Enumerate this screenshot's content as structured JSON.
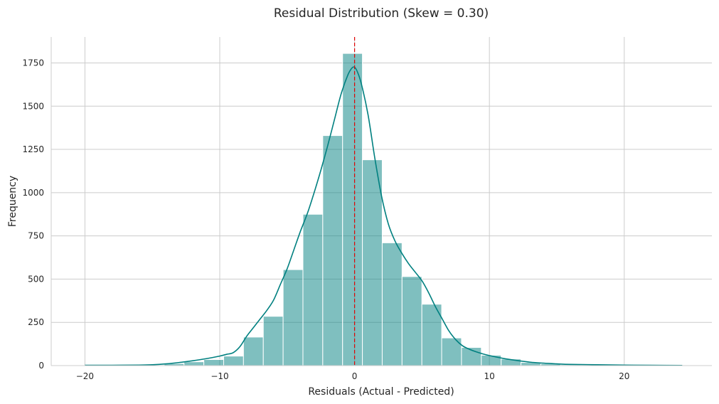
{
  "chart_data": {
    "type": "bar",
    "subtype": "histogram_with_kde",
    "title": "Residual Distribution (Skew = 0.30)",
    "xlabel": "Residuals (Actual - Predicted)",
    "ylabel": "Frequency",
    "xlim": [
      -22.5,
      26.5
    ],
    "ylim": [
      0,
      1900
    ],
    "xticks": [
      -20,
      -10,
      0,
      10,
      20
    ],
    "xtick_labels": [
      "−20",
      "−10",
      "0",
      "10",
      "20"
    ],
    "yticks": [
      0,
      250,
      500,
      750,
      1000,
      1250,
      1500,
      1750
    ],
    "grid": true,
    "bar_color": "#008080",
    "kde_color": "#008080",
    "reference_line": {
      "x": 0,
      "color": "#e00000",
      "style": "dashed"
    },
    "bins": {
      "edges": [
        -20.0,
        -18.53,
        -17.06,
        -15.59,
        -14.12,
        -12.65,
        -11.18,
        -9.71,
        -8.24,
        -6.77,
        -5.3,
        -3.83,
        -2.36,
        -0.89,
        0.58,
        2.05,
        3.52,
        4.99,
        6.46,
        7.93,
        9.4,
        10.87,
        12.34,
        13.81,
        15.28,
        16.75,
        18.22,
        19.69,
        21.16,
        22.63,
        24.1
      ],
      "counts": [
        2,
        1,
        2,
        3,
        12,
        22,
        35,
        55,
        165,
        285,
        555,
        875,
        1330,
        1805,
        1190,
        710,
        515,
        355,
        160,
        105,
        60,
        38,
        18,
        10,
        5,
        4,
        3,
        2,
        1,
        1
      ]
    },
    "kde": {
      "x": [
        -20,
        -18,
        -16,
        -15,
        -14,
        -13,
        -12,
        -11,
        -10,
        -9.5,
        -9,
        -8.5,
        -8,
        -7.5,
        -7,
        -6.5,
        -6,
        -5.5,
        -5,
        -4.5,
        -4,
        -3.5,
        -3,
        -2.5,
        -2,
        -1.5,
        -1,
        -0.5,
        -0.2,
        0,
        0.2,
        0.5,
        1,
        1.5,
        2,
        2.5,
        3,
        3.5,
        4,
        4.5,
        5,
        5.5,
        6,
        6.5,
        7,
        7.5,
        8,
        8.5,
        9,
        9.5,
        10,
        11,
        12,
        13,
        14,
        15,
        16,
        18,
        20,
        22,
        24.3
      ],
      "y": [
        2,
        2,
        3,
        5,
        10,
        18,
        28,
        40,
        55,
        65,
        75,
        110,
        170,
        220,
        270,
        320,
        380,
        470,
        560,
        670,
        780,
        880,
        1000,
        1130,
        1270,
        1420,
        1570,
        1680,
        1720,
        1725,
        1700,
        1630,
        1450,
        1200,
        980,
        820,
        720,
        650,
        590,
        540,
        490,
        420,
        340,
        270,
        200,
        150,
        115,
        95,
        80,
        68,
        58,
        42,
        30,
        20,
        14,
        10,
        7,
        5,
        3,
        2,
        1
      ]
    }
  }
}
